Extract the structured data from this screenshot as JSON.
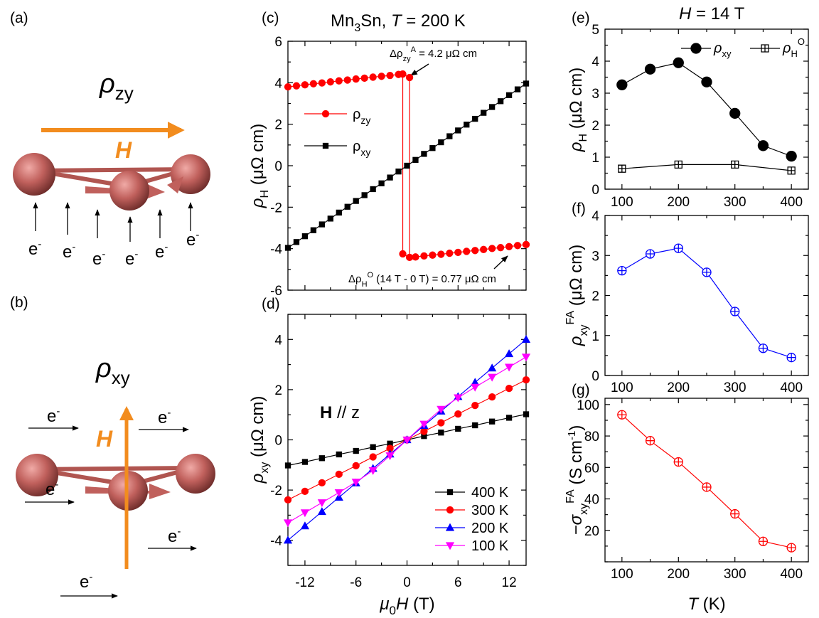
{
  "panel_a": {
    "label": "(a)",
    "quantity": "ρ",
    "quantity_sub": "zy",
    "field": "H",
    "electron": "e",
    "electron_sup": "-",
    "colors": {
      "field_arrow": "#f28c1e",
      "atom": "#c0605c"
    }
  },
  "panel_b": {
    "label": "(b)",
    "quantity": "ρ",
    "quantity_sub": "xy",
    "field": "H",
    "electron": "e",
    "electron_sup": "-"
  },
  "chart_data": [
    {
      "type": "line",
      "panel_label": "(c)",
      "title": {
        "a": "Mn",
        "sub": "3",
        "b": "Sn, ",
        "T": "T",
        "c": " = 200 K"
      },
      "ylabel": {
        "symbol": "ρ",
        "sub": "H",
        "unit": " (μΩ cm)"
      },
      "xlim": [
        -14,
        14
      ],
      "ylim": [
        -6,
        6
      ],
      "xticks": [
        -12,
        -6,
        0,
        6,
        12
      ],
      "yticks": [
        6,
        4,
        2,
        0,
        -2,
        -4,
        -6
      ],
      "show_xticklabels": false,
      "legend": [
        {
          "symbol": "ρ",
          "sub": "zy",
          "color": "#ff0000",
          "marker": "circle"
        },
        {
          "symbol": "ρ",
          "sub": "xy",
          "color": "#000000",
          "marker": "square"
        }
      ],
      "annotations": {
        "top": {
          "delta": "Δρ",
          "sup": "A",
          "sub": "zy",
          "text": " = 4.2 μΩ cm"
        },
        "bottom": {
          "delta": "Δρ",
          "sup": "O",
          "sub": "H",
          "text": " (14 T - 0 T) = 0.77 μΩ cm"
        }
      },
      "series": [
        {
          "label": "rho_zy",
          "color": "#ff0000",
          "marker": "circle",
          "branches": [
            {
              "x": [
                -14,
                -13,
                -12,
                -11,
                -10,
                -9,
                -8,
                -7,
                -6,
                -5,
                -4,
                -3,
                -2,
                -1,
                -0.5,
                0.3
              ],
              "y": [
                3.8,
                3.85,
                3.9,
                3.95,
                3.99,
                4.04,
                4.09,
                4.13,
                4.18,
                4.22,
                4.27,
                4.31,
                4.35,
                4.4,
                4.42,
                4.25
              ]
            },
            {
              "x": [
                -0.5,
                0.3,
                1,
                2,
                3,
                4,
                5,
                6,
                7,
                8,
                9,
                10,
                11,
                12,
                13,
                14
              ],
              "y": [
                -4.25,
                -4.42,
                -4.4,
                -4.35,
                -4.31,
                -4.27,
                -4.22,
                -4.18,
                -4.13,
                -4.09,
                -4.04,
                -3.99,
                -3.95,
                -3.9,
                -3.85,
                -3.8
              ]
            }
          ],
          "jumps": [
            {
              "x": -0.5,
              "from": 4.42,
              "to": -4.25
            },
            {
              "x": 0.3,
              "from": 4.25,
              "to": -4.42
            }
          ]
        },
        {
          "label": "rho_xy",
          "color": "#000000",
          "marker": "square",
          "x": [
            -14,
            -13,
            -12,
            -11,
            -10,
            -9,
            -8,
            -7,
            -6,
            -5,
            -4,
            -3,
            -2,
            -1,
            0,
            1,
            2,
            3,
            4,
            5,
            6,
            7,
            8,
            9,
            10,
            11,
            12,
            13,
            14
          ],
          "y": [
            -3.96,
            -3.68,
            -3.4,
            -3.11,
            -2.83,
            -2.55,
            -2.26,
            -1.98,
            -1.7,
            -1.42,
            -1.13,
            -0.85,
            -0.57,
            -0.28,
            0,
            0.28,
            0.57,
            0.85,
            1.13,
            1.42,
            1.7,
            1.98,
            2.26,
            2.55,
            2.83,
            3.11,
            3.4,
            3.68,
            3.96
          ]
        }
      ]
    },
    {
      "type": "line",
      "panel_label": "(d)",
      "xlabel": {
        "symbol": "μ",
        "sub": "0",
        "H": "H",
        "unit": " (T)"
      },
      "ylabel": {
        "symbol": "ρ",
        "sub": "xy",
        "unit": " (μΩ cm)"
      },
      "annotation": {
        "bold": "H",
        "text": " // z"
      },
      "xlim": [
        -14,
        14
      ],
      "ylim": [
        -5,
        5
      ],
      "xticks": [
        -12,
        -6,
        0,
        6,
        12
      ],
      "yticks": [
        4,
        2,
        0,
        -2,
        -4
      ],
      "show_xticklabels": true,
      "series": [
        {
          "name": "400 K",
          "color": "#000000",
          "marker": "square",
          "x": [
            -14,
            -12,
            -10,
            -8,
            -6,
            -4,
            -2,
            0,
            2,
            4,
            6,
            8,
            10,
            12,
            14
          ],
          "y": [
            -1.02,
            -0.88,
            -0.73,
            -0.58,
            -0.44,
            -0.29,
            -0.15,
            0,
            0.15,
            0.29,
            0.44,
            0.58,
            0.73,
            0.88,
            1.02
          ]
        },
        {
          "name": "300 K",
          "color": "#ff0000",
          "marker": "circle",
          "x": [
            -14,
            -12,
            -10,
            -8,
            -6,
            -4,
            -2,
            0,
            2,
            4,
            6,
            8,
            10,
            12,
            14
          ],
          "y": [
            -2.39,
            -2.05,
            -1.71,
            -1.37,
            -1.03,
            -0.68,
            -0.34,
            0,
            0.34,
            0.68,
            1.03,
            1.37,
            1.71,
            2.05,
            2.39
          ]
        },
        {
          "name": "200 K",
          "color": "#0000ff",
          "marker": "triangle-up",
          "x": [
            -14,
            -12,
            -10,
            -8,
            -6,
            -4,
            -2,
            0,
            2,
            4,
            6,
            8,
            10,
            12,
            14
          ],
          "y": [
            -4.0,
            -3.43,
            -2.86,
            -2.29,
            -1.72,
            -1.14,
            -0.57,
            0,
            0.57,
            1.14,
            1.72,
            2.29,
            2.86,
            3.43,
            4.0
          ]
        },
        {
          "name": "100 K",
          "color": "#ff00ff",
          "marker": "triangle-down",
          "x": [
            -14,
            -12,
            -10,
            -8,
            -6,
            -4,
            -2,
            0,
            2,
            4,
            6,
            8,
            10,
            12,
            14
          ],
          "y": [
            -3.3,
            -2.9,
            -2.5,
            -2.1,
            -1.68,
            -1.22,
            -0.63,
            0,
            0.63,
            1.22,
            1.68,
            2.1,
            2.5,
            2.9,
            3.3
          ]
        }
      ]
    },
    {
      "type": "line",
      "panel_label": "(e)",
      "title": {
        "H": "H",
        "text": " = 14 T"
      },
      "ylabel": {
        "symbol": "ρ",
        "sub": "H",
        "unit": " (μΩ cm)"
      },
      "xlim": [
        70,
        430
      ],
      "ylim": [
        0,
        5
      ],
      "xticks": [
        100,
        200,
        300,
        400
      ],
      "yticks": [
        0,
        1,
        2,
        3,
        4,
        5
      ],
      "show_xticklabels": true,
      "legend": [
        {
          "symbol": "ρ",
          "sub": "xy",
          "marker": "circle"
        },
        {
          "symbol": "ρ",
          "sub": "H",
          "sup": "O",
          "marker": "square-plus"
        }
      ],
      "series": [
        {
          "label": "rho_xy",
          "color": "#000000",
          "marker": "circle",
          "x": [
            100,
            150,
            200,
            250,
            300,
            350,
            400
          ],
          "y": [
            3.26,
            3.75,
            3.95,
            3.35,
            2.37,
            1.36,
            1.03
          ]
        },
        {
          "label": "rho_H^O",
          "color": "#000000",
          "marker": "square-plus",
          "x": [
            100,
            200,
            300,
            400
          ],
          "y": [
            0.64,
            0.77,
            0.77,
            0.58
          ]
        }
      ]
    },
    {
      "type": "line",
      "panel_label": "(f)",
      "ylabel": {
        "symbol": "ρ",
        "sub": "xy",
        "sup": "FA",
        "unit": " (μΩ cm)"
      },
      "xlim": [
        70,
        430
      ],
      "ylim": [
        0,
        4
      ],
      "xticks": [
        100,
        200,
        300,
        400
      ],
      "yticks": [
        0,
        1,
        2,
        3,
        4
      ],
      "show_xticklabels": true,
      "series": [
        {
          "label": "rho_xy^FA",
          "color": "#0000ff",
          "marker": "circle-plus",
          "x": [
            100,
            150,
            200,
            250,
            300,
            350,
            400
          ],
          "y": [
            2.62,
            3.04,
            3.18,
            2.58,
            1.6,
            0.68,
            0.45
          ]
        }
      ]
    },
    {
      "type": "line",
      "panel_label": "(g)",
      "xlabel": {
        "T": "T",
        "unit": " (K)"
      },
      "ylabel": {
        "minus": "−σ",
        "sub": "xy",
        "sup": "FA",
        "unit": " (S cm",
        "unit_sup": "-1",
        "close": ")"
      },
      "xlim": [
        70,
        430
      ],
      "ylim": [
        0,
        104
      ],
      "xticks": [
        100,
        200,
        300,
        400
      ],
      "yticks": [
        20,
        40,
        60,
        80,
        100
      ],
      "show_xticklabels": true,
      "series": [
        {
          "label": "-sigma_xy^FA",
          "color": "#ff0000",
          "marker": "circle-plus",
          "x": [
            100,
            150,
            200,
            250,
            300,
            350,
            400
          ],
          "y": [
            93.5,
            77,
            63.5,
            47.5,
            30.5,
            13,
            9
          ]
        }
      ]
    }
  ]
}
